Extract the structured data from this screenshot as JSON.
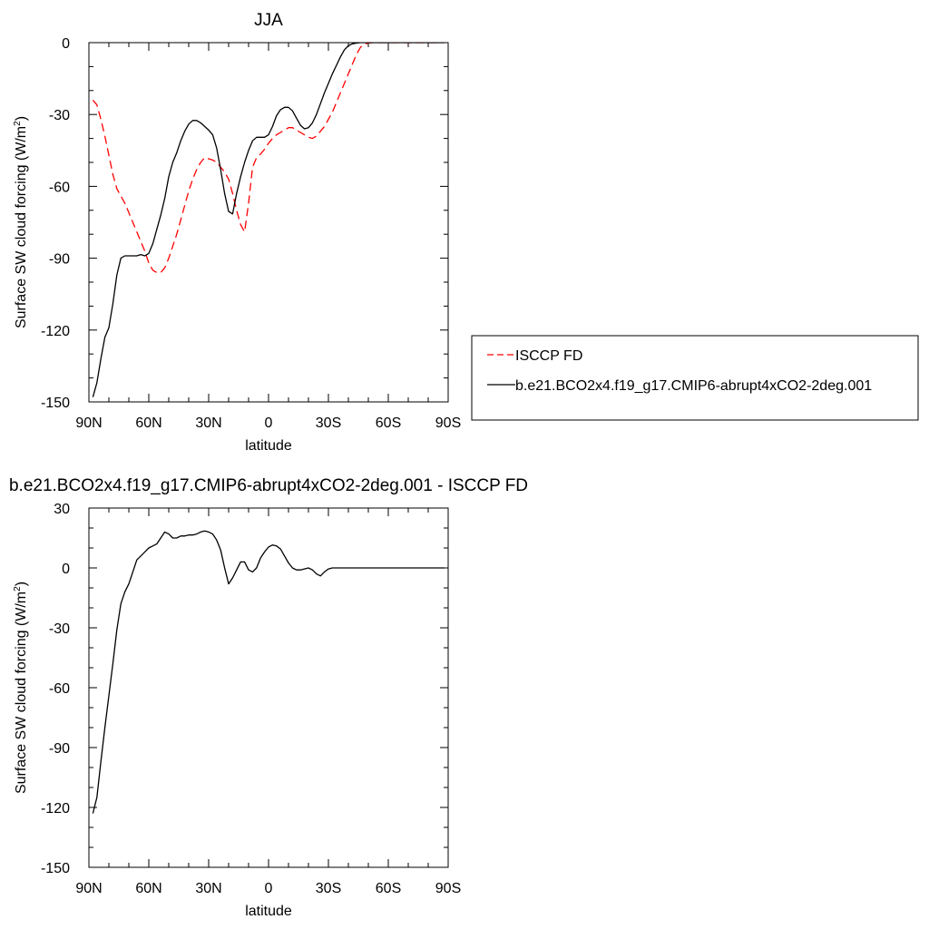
{
  "chart_data": [
    {
      "type": "line",
      "title": "JJA",
      "xlabel": "latitude",
      "ylabel_prefix": "Surface SW cloud forcing (W/m",
      "ylabel_sup": "2",
      "ylabel_suffix": ")",
      "xlim": [
        90,
        -90
      ],
      "ylim": [
        -150,
        0
      ],
      "x_ticks": [
        90,
        60,
        30,
        0,
        -30,
        -60,
        -90
      ],
      "x_tick_labels": [
        "90N",
        "60N",
        "30N",
        "0",
        "30S",
        "60S",
        "90S"
      ],
      "y_ticks": [
        0,
        -30,
        -60,
        -90,
        -120,
        -150
      ],
      "y_tick_labels": [
        "0",
        "-30",
        "-60",
        "-90",
        "-120",
        "-150"
      ],
      "legend": "right",
      "series": [
        {
          "name": "ISCCP FD",
          "color": "#ff0000",
          "dash": "dashed",
          "x": [
            88,
            86,
            84,
            82,
            80,
            78,
            76,
            74,
            72,
            70,
            68,
            66,
            64,
            62,
            60,
            58,
            56,
            54,
            52,
            50,
            48,
            46,
            44,
            42,
            40,
            38,
            36,
            34,
            32,
            30,
            28,
            26,
            24,
            22,
            20,
            18,
            16,
            14,
            12,
            10,
            8,
            6,
            4,
            2,
            0,
            -2,
            -4,
            -6,
            -8,
            -10,
            -12,
            -14,
            -16,
            -18,
            -20,
            -22,
            -24,
            -26,
            -28,
            -30,
            -32,
            -34,
            -36,
            -38,
            -40,
            -42,
            -44,
            -46,
            -48,
            -50,
            -52,
            -54,
            -56,
            -58,
            -60,
            -62,
            -64,
            -66,
            -68,
            -70,
            -72,
            -74,
            -76,
            -78,
            -80,
            -82,
            -84,
            -86,
            -88
          ],
          "y": [
            -24,
            -26,
            -32,
            -39,
            -47,
            -55,
            -61,
            -64,
            -67,
            -71,
            -75,
            -79,
            -83,
            -87,
            -92,
            -95,
            -96,
            -96,
            -94,
            -90,
            -85,
            -80,
            -74,
            -68,
            -62,
            -57,
            -53,
            -50,
            -48,
            -48.5,
            -49,
            -50,
            -52,
            -54,
            -57,
            -63,
            -70,
            -76,
            -79,
            -67,
            -52,
            -48,
            -46.5,
            -44.5,
            -42,
            -40,
            -38.5,
            -37.5,
            -36.5,
            -35.5,
            -35.5,
            -36.5,
            -37.5,
            -38.5,
            -39.5,
            -40,
            -39,
            -37,
            -35,
            -32,
            -29,
            -25,
            -21,
            -17,
            -13,
            -9,
            -5,
            -2,
            -0.6,
            -0.2,
            0,
            0,
            0,
            0,
            0,
            0,
            0,
            0,
            0,
            0,
            0,
            0,
            0,
            0,
            0,
            0,
            0,
            0,
            0
          ]
        },
        {
          "name": "b.e21.BCO2x4.f19_g17.CMIP6-abrupt4xCO2-2deg.001",
          "color": "#000000",
          "dash": "solid",
          "x": [
            88,
            86,
            84,
            82,
            80,
            78,
            76,
            74,
            72,
            70,
            68,
            66,
            64,
            62,
            60,
            58,
            56,
            54,
            52,
            50,
            48,
            46,
            44,
            42,
            40,
            38,
            36,
            34,
            32,
            30,
            28,
            26,
            24,
            22,
            20,
            18,
            16,
            14,
            12,
            10,
            8,
            6,
            4,
            2,
            0,
            -2,
            -4,
            -6,
            -8,
            -10,
            -12,
            -14,
            -16,
            -18,
            -20,
            -22,
            -24,
            -26,
            -28,
            -30,
            -32,
            -34,
            -36,
            -38,
            -40,
            -42,
            -44,
            -46,
            -48,
            -50,
            -52,
            -54,
            -56,
            -58,
            -60,
            -62,
            -64,
            -66,
            -68,
            -70,
            -72,
            -74,
            -76,
            -78,
            -80,
            -82,
            -84,
            -86,
            -88
          ],
          "y": [
            -148,
            -142,
            -132,
            -123,
            -119,
            -109,
            -97,
            -90,
            -89,
            -89,
            -89,
            -89,
            -88.5,
            -89,
            -88,
            -84,
            -78,
            -72,
            -65,
            -56,
            -50,
            -46,
            -41,
            -37,
            -34,
            -32.5,
            -32.5,
            -33.5,
            -35,
            -36.5,
            -38.5,
            -44,
            -53,
            -63,
            -70.5,
            -71.5,
            -63,
            -56,
            -50,
            -45,
            -41,
            -39.5,
            -39.5,
            -39.5,
            -38.5,
            -35,
            -30.5,
            -28,
            -27,
            -27,
            -28.5,
            -31.5,
            -34.5,
            -36,
            -35.5,
            -33.5,
            -30,
            -25.5,
            -21,
            -17,
            -13,
            -9.5,
            -6,
            -3,
            -1.3,
            -0.5,
            -0.2,
            0,
            0,
            0,
            0,
            0,
            0,
            0,
            0,
            0,
            0,
            0,
            0,
            0,
            0,
            0,
            0,
            0,
            0,
            0,
            0,
            0,
            0
          ]
        }
      ]
    },
    {
      "type": "line",
      "title": "b.e21.BCO2x4.f19_g17.CMIP6-abrupt4xCO2-2deg.001 - ISCCP FD",
      "xlabel": "latitude",
      "ylabel_prefix": "Surface SW cloud forcing (W/m",
      "ylabel_sup": "2",
      "ylabel_suffix": ")",
      "xlim": [
        90,
        -90
      ],
      "ylim": [
        -150,
        30
      ],
      "x_ticks": [
        90,
        60,
        30,
        0,
        -30,
        -60,
        -90
      ],
      "x_tick_labels": [
        "90N",
        "60N",
        "30N",
        "0",
        "30S",
        "60S",
        "90S"
      ],
      "y_ticks": [
        30,
        0,
        -30,
        -60,
        -90,
        -120,
        -150
      ],
      "y_tick_labels": [
        "30",
        "0",
        "-30",
        "-60",
        "-90",
        "-120",
        "-150"
      ],
      "series": [
        {
          "color": "#000000",
          "dash": "solid",
          "x": [
            88,
            86,
            84,
            82,
            80,
            78,
            76,
            74,
            72,
            70,
            68,
            66,
            64,
            62,
            60,
            58,
            56,
            54,
            52,
            50,
            48,
            46,
            44,
            42,
            40,
            38,
            36,
            34,
            32,
            30,
            28,
            26,
            24,
            22,
            20,
            18,
            16,
            14,
            12,
            10,
            8,
            6,
            4,
            2,
            0,
            -2,
            -4,
            -6,
            -8,
            -10,
            -12,
            -14,
            -16,
            -18,
            -20,
            -22,
            -24,
            -26,
            -28,
            -30,
            -32,
            -34,
            -36,
            -38,
            -40,
            -42,
            -44,
            -46,
            -48,
            -50,
            -52,
            -54,
            -56,
            -58,
            -60,
            -62,
            -64,
            -66,
            -68,
            -70,
            -72,
            -74,
            -76,
            -78,
            -80,
            -82,
            -84,
            -86,
            -88
          ],
          "y": [
            -123,
            -115,
            -97,
            -80,
            -64,
            -48,
            -31,
            -18,
            -12,
            -8,
            -2,
            4,
            6,
            8,
            10,
            11,
            12,
            15,
            18,
            17,
            15,
            15,
            16,
            16,
            16.5,
            16.5,
            17,
            18,
            18.5,
            18,
            17,
            14,
            9,
            0,
            -8,
            -5,
            -1,
            3,
            3,
            -1,
            -2,
            0,
            5,
            8,
            10.5,
            11.5,
            11,
            9.5,
            6,
            2.5,
            0,
            -1,
            -1,
            -0.5,
            0,
            -1,
            -3,
            -4,
            -2,
            -0.5,
            0,
            0,
            0,
            0,
            0,
            0,
            0,
            0,
            0,
            0,
            0,
            0,
            0,
            0,
            0,
            0,
            0,
            0,
            0,
            0,
            0,
            0,
            0,
            0,
            0,
            0,
            0,
            0,
            0
          ]
        }
      ]
    }
  ]
}
